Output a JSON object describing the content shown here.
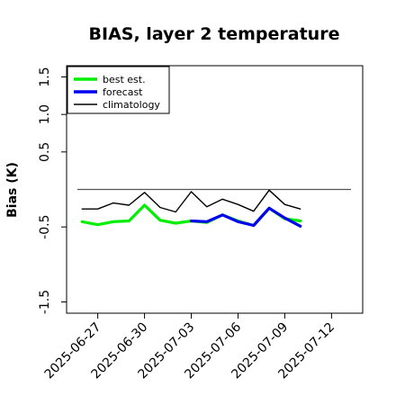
{
  "chart_data": {
    "type": "line",
    "title": "BIAS, layer 2 temperature",
    "ylabel": "Bias (K)",
    "xlabel": "",
    "ylim": [
      -1.65,
      1.65
    ],
    "xlim": [
      "2025-06-25",
      "2025-07-14"
    ],
    "yticks": [
      -1.5,
      -0.5,
      0.5,
      1.0,
      1.5
    ],
    "yticks_labels": [
      "-1.5",
      "-0.5",
      "0.5",
      "1.0",
      "1.5"
    ],
    "xticks": [
      "2025-06-27",
      "2025-06-30",
      "2025-07-03",
      "2025-07-06",
      "2025-07-09",
      "2025-07-12"
    ],
    "highlight_xtick": "2025-07-03",
    "zero_line": 0,
    "legend_position": "top-left",
    "series": [
      {
        "name": "best est.",
        "color": "#00ee00",
        "x": [
          "2025-06-26",
          "2025-06-27",
          "2025-06-28",
          "2025-06-29",
          "2025-06-30",
          "2025-07-01",
          "2025-07-02",
          "2025-07-03",
          "2025-07-04",
          "2025-07-05",
          "2025-07-06",
          "2025-07-07",
          "2025-07-08",
          "2025-07-09",
          "2025-07-10"
        ],
        "values": [
          -0.43,
          -0.47,
          -0.43,
          -0.42,
          -0.21,
          -0.41,
          -0.45,
          -0.42,
          -0.44,
          -0.34,
          -0.42,
          -0.48,
          -0.25,
          -0.39,
          -0.42
        ]
      },
      {
        "name": "forecast",
        "color": "#0000ee",
        "x": [
          "2025-07-03",
          "2025-07-04",
          "2025-07-05",
          "2025-07-06",
          "2025-07-07",
          "2025-07-08",
          "2025-07-09",
          "2025-07-10"
        ],
        "values": [
          -0.42,
          -0.43,
          -0.34,
          -0.43,
          -0.48,
          -0.25,
          -0.38,
          -0.49
        ]
      },
      {
        "name": "climatology",
        "color": "#000000",
        "x": [
          "2025-06-26",
          "2025-06-27",
          "2025-06-28",
          "2025-06-29",
          "2025-06-30",
          "2025-07-01",
          "2025-07-02",
          "2025-07-03",
          "2025-07-04",
          "2025-07-05",
          "2025-07-06",
          "2025-07-07",
          "2025-07-08",
          "2025-07-09",
          "2025-07-10"
        ],
        "values": [
          -0.26,
          -0.26,
          -0.18,
          -0.21,
          -0.04,
          -0.24,
          -0.3,
          -0.03,
          -0.23,
          -0.13,
          -0.2,
          -0.29,
          -0.01,
          -0.2,
          -0.26
        ]
      }
    ]
  }
}
